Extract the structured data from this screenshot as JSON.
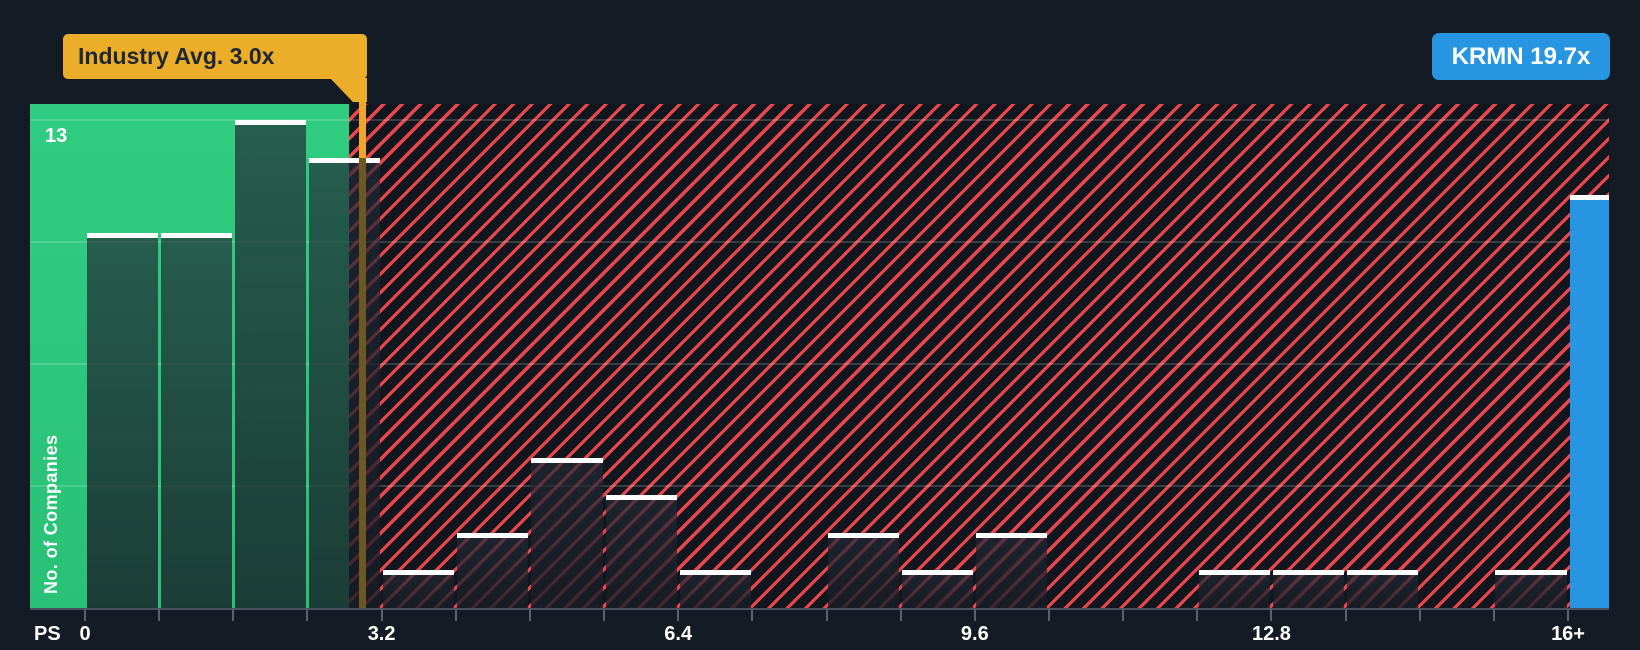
{
  "chart_data": {
    "type": "bar",
    "subtype": "histogram",
    "title": "",
    "xlabel": "PS",
    "ylabel": "No. of Companies",
    "y_max_label": "13",
    "ylim": [
      0,
      13.4
    ],
    "y_gridline_values": [
      3.25,
      6.5,
      9.75,
      13
    ],
    "x_range_display": [
      0,
      16
    ],
    "bin_width": 0.8,
    "x_ticks": [
      {
        "value": 0,
        "label": "0"
      },
      {
        "value": 3.2,
        "label": "3.2"
      },
      {
        "value": 6.4,
        "label": "6.4"
      },
      {
        "value": 9.6,
        "label": "9.6"
      },
      {
        "value": 12.8,
        "label": "12.8"
      },
      {
        "value": 16,
        "label": "16+"
      }
    ],
    "bins": [
      {
        "start": 0.0,
        "end": 0.8,
        "count": 10
      },
      {
        "start": 0.8,
        "end": 1.6,
        "count": 10
      },
      {
        "start": 1.6,
        "end": 2.4,
        "count": 13
      },
      {
        "start": 2.4,
        "end": 3.2,
        "count": 12
      },
      {
        "start": 3.2,
        "end": 4.0,
        "count": 1
      },
      {
        "start": 4.0,
        "end": 4.8,
        "count": 2
      },
      {
        "start": 4.8,
        "end": 5.6,
        "count": 4
      },
      {
        "start": 5.6,
        "end": 6.4,
        "count": 3
      },
      {
        "start": 6.4,
        "end": 7.2,
        "count": 1
      },
      {
        "start": 7.2,
        "end": 8.0,
        "count": 0
      },
      {
        "start": 8.0,
        "end": 8.8,
        "count": 2
      },
      {
        "start": 8.8,
        "end": 9.6,
        "count": 1
      },
      {
        "start": 9.6,
        "end": 10.4,
        "count": 2
      },
      {
        "start": 10.4,
        "end": 11.2,
        "count": 0
      },
      {
        "start": 11.2,
        "end": 12.0,
        "count": 0
      },
      {
        "start": 12.0,
        "end": 12.8,
        "count": 1
      },
      {
        "start": 12.8,
        "end": 13.6,
        "count": 1
      },
      {
        "start": 13.6,
        "end": 14.4,
        "count": 1
      },
      {
        "start": 14.4,
        "end": 15.2,
        "count": 0
      },
      {
        "start": 15.2,
        "end": 16.0,
        "count": 1
      }
    ],
    "annotations": {
      "industry_avg": {
        "label": "Industry Avg. 3.0x",
        "value": 3.0
      },
      "company": {
        "label": "KRMN 19.7x",
        "ticker": "KRMN",
        "value": 19.7,
        "plotted_bin": "16+",
        "bar_height_units": 11
      }
    },
    "colors": {
      "background": "#151b24",
      "below_avg_zone": "#2dc97b",
      "above_avg_hatch_line": "#e8484b",
      "above_avg_hatch_bg": "#12171f",
      "bar_top_edge": "#ffffff",
      "callout_bg": "#ecae28",
      "callout_text": "#1e2734",
      "industry_line_bright": "#f0a62b",
      "industry_line_shaded": "#6b5822",
      "company_blue": "#2795e2",
      "axis_text": "#ffffff"
    },
    "legend_position": "none",
    "grid": "horizontal-faint"
  }
}
